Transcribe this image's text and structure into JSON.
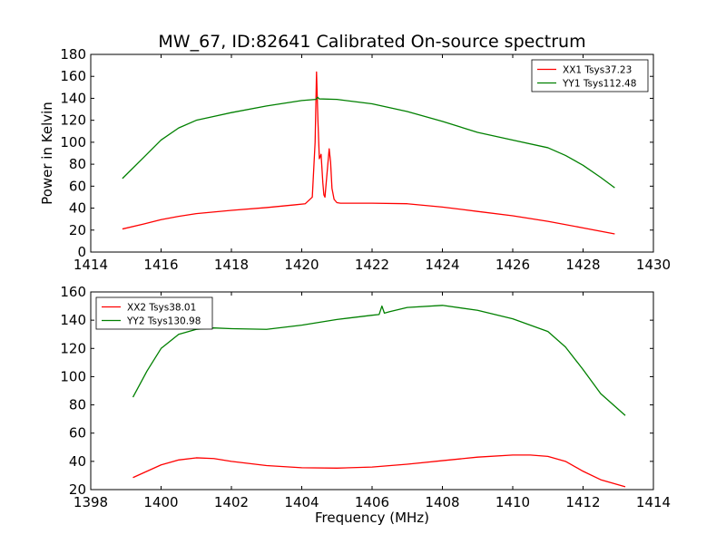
{
  "figure": {
    "title": "MW_67, ID:82641 Calibrated On-source spectrum"
  },
  "chart_data": [
    {
      "type": "line",
      "title": "MW_67, ID:82641 Calibrated On-source spectrum",
      "xlabel": "",
      "ylabel": "Power in Kelvin",
      "xlim": [
        1414,
        1430
      ],
      "ylim": [
        0,
        180
      ],
      "xticks": [
        1414,
        1416,
        1418,
        1420,
        1422,
        1424,
        1426,
        1428,
        1430
      ],
      "yticks": [
        0,
        20,
        40,
        60,
        80,
        100,
        120,
        140,
        160,
        180
      ],
      "grid": false,
      "legend_position": "top-right",
      "series": [
        {
          "name": "XX1 Tsys37.23",
          "color": "#ff0000",
          "x": [
            1414.9,
            1415.5,
            1416,
            1416.5,
            1417,
            1418,
            1419,
            1419.8,
            1420.1,
            1420.3,
            1420.38,
            1420.42,
            1420.46,
            1420.5,
            1420.55,
            1420.6,
            1420.63,
            1420.66,
            1420.72,
            1420.78,
            1420.82,
            1420.86,
            1420.92,
            1421.0,
            1421.1,
            1421.3,
            1422,
            1423,
            1424,
            1425,
            1426,
            1427,
            1428,
            1428.9
          ],
          "y": [
            21,
            25.5,
            29.5,
            32.5,
            35,
            38,
            40.5,
            43,
            44,
            50,
            100,
            164,
            120,
            85,
            89,
            63,
            52,
            50,
            72,
            94,
            82,
            58,
            48,
            45,
            44.5,
            44.5,
            44.5,
            44,
            41,
            37,
            33,
            28,
            22,
            16.5
          ]
        },
        {
          "name": "YY1 Tsys112.48",
          "color": "#008000",
          "x": [
            1414.9,
            1415.5,
            1416,
            1416.5,
            1417,
            1418,
            1419,
            1420,
            1420.4,
            1420.45,
            1420.5,
            1421,
            1422,
            1423,
            1424,
            1425,
            1426,
            1427,
            1427.5,
            1428,
            1428.5,
            1428.9
          ],
          "y": [
            67,
            86,
            102,
            113,
            120,
            127,
            133,
            138,
            139,
            141,
            139.5,
            139,
            135,
            128,
            119,
            109,
            102,
            95,
            88,
            79,
            68,
            58.5
          ]
        }
      ]
    },
    {
      "type": "line",
      "title": "",
      "xlabel": "Frequency (MHz)",
      "ylabel": "",
      "xlim": [
        1398,
        1414
      ],
      "ylim": [
        20,
        160
      ],
      "xticks": [
        1398,
        1400,
        1402,
        1404,
        1406,
        1408,
        1410,
        1412,
        1414
      ],
      "yticks": [
        20,
        40,
        60,
        80,
        100,
        120,
        140,
        160
      ],
      "grid": false,
      "legend_position": "top-left",
      "series": [
        {
          "name": "XX2 Tsys38.01",
          "color": "#ff0000",
          "x": [
            1399.2,
            1399.6,
            1400,
            1400.5,
            1401,
            1401.5,
            1402,
            1403,
            1404,
            1405,
            1406,
            1407,
            1408,
            1409,
            1410,
            1410.5,
            1411,
            1411.5,
            1412,
            1412.5,
            1413.2
          ],
          "y": [
            28.5,
            33,
            37.5,
            41,
            42.5,
            42,
            40,
            37,
            35.5,
            35.2,
            36,
            38,
            40.5,
            43,
            44.5,
            44.5,
            43.5,
            40,
            33,
            27,
            22
          ]
        },
        {
          "name": "YY2 Tsys130.98",
          "color": "#008000",
          "x": [
            1399.2,
            1399.6,
            1400,
            1400.5,
            1401,
            1401.5,
            1402,
            1403,
            1404,
            1405,
            1406,
            1406.2,
            1406.28,
            1406.35,
            1406.5,
            1407,
            1408,
            1409,
            1410,
            1411,
            1411.5,
            1412,
            1412.5,
            1413.2
          ],
          "y": [
            85.5,
            104,
            120,
            130,
            133.5,
            134.5,
            134,
            133.5,
            136.5,
            140.5,
            143.5,
            144,
            150,
            145,
            146,
            149,
            150.5,
            147,
            141,
            132,
            121,
            105,
            88,
            72.5
          ]
        }
      ]
    }
  ]
}
